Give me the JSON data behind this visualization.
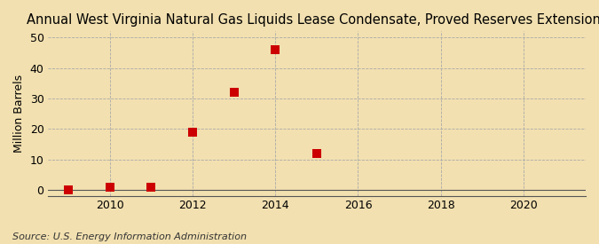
{
  "title": "Annual West Virginia Natural Gas Liquids Lease Condensate, Proved Reserves Extensions",
  "ylabel": "Million Barrels",
  "source": "Source: U.S. Energy Information Administration",
  "background_color": "#f2e0b0",
  "plot_background_color": "#f2e0b0",
  "x_data": [
    2009,
    2010,
    2011,
    2012,
    2013,
    2014,
    2015
  ],
  "y_data": [
    0.0,
    1.0,
    1.0,
    19.0,
    32.0,
    46.0,
    12.0
  ],
  "marker_color": "#cc0000",
  "marker_size": 48,
  "xlim": [
    2008.5,
    2021.5
  ],
  "ylim": [
    -2,
    52
  ],
  "yticks": [
    0,
    10,
    20,
    30,
    40,
    50
  ],
  "xticks": [
    2010,
    2012,
    2014,
    2016,
    2018,
    2020
  ],
  "grid_color": "#aaaaaa",
  "title_fontsize": 10.5,
  "label_fontsize": 9,
  "tick_fontsize": 9,
  "source_fontsize": 8
}
